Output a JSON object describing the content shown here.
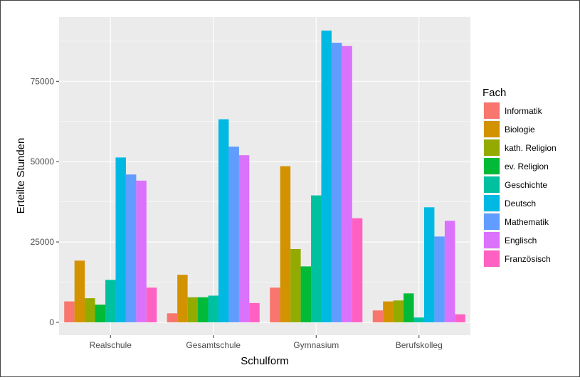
{
  "chart_data": {
    "type": "bar",
    "xlabel": "Schulform",
    "ylabel": "Erteilte Stunden",
    "categories": [
      "Realschule",
      "Gesamtschule",
      "Gymnasium",
      "Berufskolleg"
    ],
    "y_ticks": [
      0,
      25000,
      50000,
      75000
    ],
    "ylim": [
      -4000,
      95000
    ],
    "grid": true,
    "legend": {
      "title": "Fach",
      "position": "right"
    },
    "series": [
      {
        "name": "Informatik",
        "color": "#F8766D",
        "values": [
          6500,
          2800,
          10800,
          3700
        ]
      },
      {
        "name": "Biologie",
        "color": "#D39200",
        "values": [
          19200,
          14800,
          48600,
          6500
        ]
      },
      {
        "name": "kath. Religion",
        "color": "#93AA00",
        "values": [
          7500,
          7800,
          22800,
          6800
        ]
      },
      {
        "name": "ev. Religion",
        "color": "#00BA38",
        "values": [
          5500,
          7800,
          17400,
          9000
        ]
      },
      {
        "name": "Geschichte",
        "color": "#00C19F",
        "values": [
          13200,
          8300,
          39500,
          1500
        ]
      },
      {
        "name": "Deutsch",
        "color": "#00B9E3",
        "values": [
          51300,
          63200,
          90800,
          35800
        ]
      },
      {
        "name": "Mathematik",
        "color": "#619CFF",
        "values": [
          46000,
          54700,
          87000,
          26700
        ]
      },
      {
        "name": "Englisch",
        "color": "#DB72FB",
        "values": [
          44100,
          52000,
          86000,
          31600
        ]
      },
      {
        "name": "Französisch",
        "color": "#FF61C3",
        "values": [
          10800,
          6000,
          32400,
          2500
        ]
      }
    ]
  }
}
